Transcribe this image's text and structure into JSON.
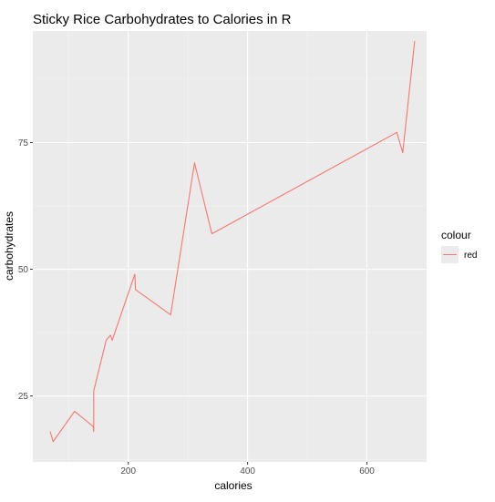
{
  "chart_data": {
    "type": "line",
    "title": "Sticky Rice Carbohydrates to Calories in R",
    "xlabel": "calories",
    "ylabel": "carbohydrates",
    "xlim": [
      40,
      700
    ],
    "ylim": [
      12,
      97
    ],
    "x_ticks": [
      200,
      400,
      600
    ],
    "y_ticks": [
      25,
      50,
      75
    ],
    "x_tick_labels": [
      "200",
      "400",
      "600"
    ],
    "y_tick_labels": [
      "25",
      "50",
      "75"
    ],
    "grid": true,
    "background": "#ebebeb",
    "legend": {
      "title": "colour",
      "placement": "right",
      "entries": [
        {
          "label": "red",
          "color": "#f8766d"
        }
      ]
    },
    "series": [
      {
        "name": "red",
        "color": "#f8766d",
        "x": [
          69,
          74,
          110,
          141,
          142,
          142,
          163,
          170,
          173,
          211,
          212,
          271,
          311,
          340,
          650,
          660,
          680
        ],
        "y": [
          18,
          16,
          22,
          19,
          18,
          26,
          36,
          37,
          36,
          49,
          46,
          41,
          71,
          57,
          77,
          73,
          95
        ]
      }
    ]
  }
}
